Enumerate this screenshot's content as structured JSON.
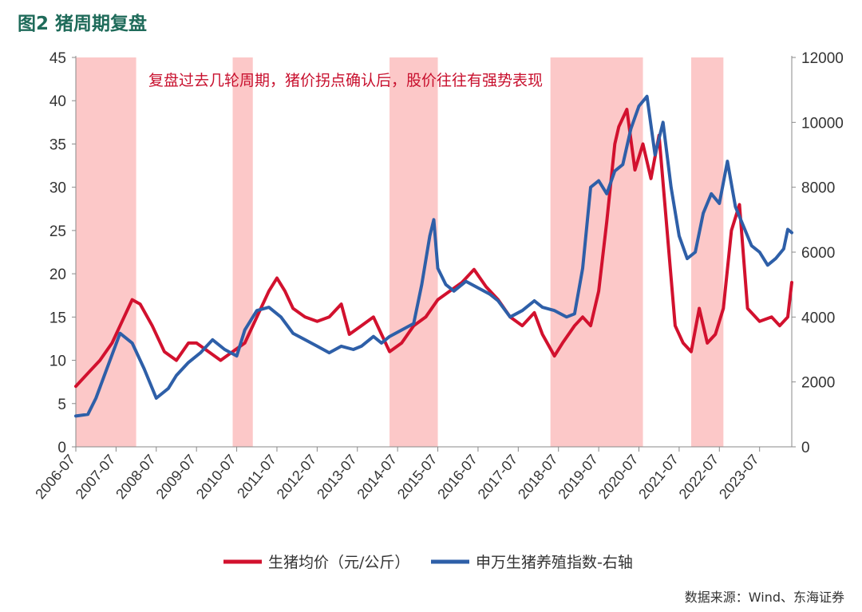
{
  "figure": {
    "title": "图2   猪周期复盘",
    "source": "数据来源：Wind、东海证券"
  },
  "chart_data": {
    "type": "line",
    "title": "图2   猪周期复盘",
    "annotation": "复盘过去几轮周期，猪价拐点确认后，股价往往有强势表现",
    "legend_position": "bottom-center",
    "y_left": {
      "label": "生猪均价（元/公斤）",
      "range": [
        0,
        45
      ],
      "ticks": [
        0,
        5,
        10,
        15,
        20,
        25,
        30,
        35,
        40,
        45
      ]
    },
    "y_right": {
      "label": "申万生猪养殖指数-右轴",
      "range": [
        0,
        12000
      ],
      "ticks": [
        0,
        2000,
        4000,
        6000,
        8000,
        10000,
        12000
      ]
    },
    "x_ticks": [
      "2006-07",
      "2007-07",
      "2008-07",
      "2009-07",
      "2010-07",
      "2011-07",
      "2012-07",
      "2013-07",
      "2014-07",
      "2015-07",
      "2016-07",
      "2017-07",
      "2018-07",
      "2019-07",
      "2020-07",
      "2021-07",
      "2022-07",
      "2023-07"
    ],
    "x_range": [
      2006.5,
      2024.3
    ],
    "shaded_periods": [
      [
        2006.5,
        2008.0
      ],
      [
        2010.4,
        2010.9
      ],
      [
        2014.3,
        2015.5
      ],
      [
        2018.3,
        2020.6
      ],
      [
        2021.8,
        2022.6
      ]
    ],
    "series": [
      {
        "name": "生猪均价（元/公斤）",
        "axis": "left",
        "color": "#d2112e",
        "x": [
          2006.5,
          2006.8,
          2007.1,
          2007.4,
          2007.7,
          2007.9,
          2008.1,
          2008.4,
          2008.7,
          2009.0,
          2009.3,
          2009.5,
          2009.8,
          2010.1,
          2010.4,
          2010.7,
          2011.0,
          2011.3,
          2011.5,
          2011.7,
          2011.9,
          2012.2,
          2012.5,
          2012.8,
          2013.1,
          2013.3,
          2013.6,
          2013.9,
          2014.1,
          2014.3,
          2014.6,
          2014.9,
          2015.2,
          2015.5,
          2015.8,
          2016.1,
          2016.4,
          2016.7,
          2017.0,
          2017.3,
          2017.6,
          2017.9,
          2018.1,
          2018.4,
          2018.6,
          2018.9,
          2019.1,
          2019.3,
          2019.5,
          2019.7,
          2019.9,
          2020.0,
          2020.2,
          2020.4,
          2020.6,
          2020.8,
          2021.0,
          2021.2,
          2021.4,
          2021.6,
          2021.8,
          2022.0,
          2022.2,
          2022.4,
          2022.6,
          2022.8,
          2023.0,
          2023.2,
          2023.5,
          2023.8,
          2024.0,
          2024.2,
          2024.3
        ],
        "y": [
          7,
          8.5,
          10,
          12,
          15,
          17,
          16.5,
          14,
          11,
          10,
          12,
          12,
          11,
          10,
          11,
          12,
          15,
          18,
          19.5,
          18,
          16,
          15,
          14.5,
          15,
          16.5,
          13,
          14,
          15,
          13,
          11,
          12,
          14,
          15,
          17,
          18,
          19,
          20.5,
          18.5,
          17,
          15,
          14,
          15.5,
          13,
          10.5,
          12,
          14,
          15,
          14,
          18,
          26,
          35,
          37,
          39,
          32,
          35,
          31,
          36,
          25,
          14,
          12,
          11,
          16,
          12,
          13,
          16,
          25,
          28,
          16,
          14.5,
          15,
          14,
          15,
          19
        ]
      },
      {
        "name": "申万生猪养殖指数-右轴",
        "axis": "right",
        "color": "#2e5fa8",
        "x": [
          2006.5,
          2006.8,
          2007.0,
          2007.3,
          2007.6,
          2007.9,
          2008.2,
          2008.5,
          2008.8,
          2009.0,
          2009.3,
          2009.6,
          2009.9,
          2010.2,
          2010.5,
          2010.7,
          2011.0,
          2011.3,
          2011.6,
          2011.9,
          2012.2,
          2012.5,
          2012.8,
          2013.1,
          2013.4,
          2013.6,
          2013.9,
          2014.1,
          2014.3,
          2014.6,
          2014.9,
          2015.1,
          2015.3,
          2015.4,
          2015.5,
          2015.7,
          2015.9,
          2016.2,
          2016.5,
          2016.8,
          2017.0,
          2017.3,
          2017.6,
          2017.9,
          2018.1,
          2018.4,
          2018.7,
          2018.9,
          2019.1,
          2019.3,
          2019.5,
          2019.7,
          2019.9,
          2020.1,
          2020.3,
          2020.5,
          2020.7,
          2020.9,
          2021.1,
          2021.3,
          2021.5,
          2021.7,
          2021.9,
          2022.1,
          2022.3,
          2022.5,
          2022.7,
          2022.9,
          2023.1,
          2023.3,
          2023.5,
          2023.7,
          2023.9,
          2024.1,
          2024.2,
          2024.3
        ],
        "y": [
          950,
          1000,
          1500,
          2500,
          3500,
          3200,
          2400,
          1500,
          1800,
          2200,
          2600,
          2900,
          3300,
          3000,
          2800,
          3600,
          4200,
          4300,
          4000,
          3500,
          3300,
          3100,
          2900,
          3100,
          3000,
          3100,
          3400,
          3200,
          3400,
          3600,
          3800,
          5000,
          6500,
          7000,
          5500,
          5000,
          4800,
          5100,
          4900,
          4700,
          4500,
          4000,
          4200,
          4500,
          4300,
          4200,
          4000,
          4100,
          5500,
          8000,
          8200,
          7800,
          8500,
          8700,
          9800,
          10500,
          10800,
          9000,
          10000,
          8000,
          6500,
          5800,
          6000,
          7200,
          7800,
          7500,
          8800,
          7400,
          6800,
          6200,
          6000,
          5600,
          5800,
          6100,
          6700,
          6600
        ]
      }
    ]
  }
}
